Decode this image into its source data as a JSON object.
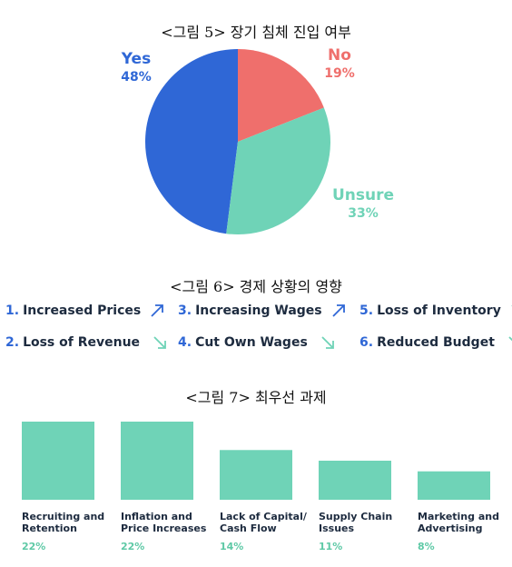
{
  "captions": {
    "fig5": "<그림 5> 장기 침체 진입 여부",
    "fig6": "<그림 6> 경제 상황의 영향",
    "fig7": "<그림 7> 최우선 과제"
  },
  "colors": {
    "yes": "#2f67d6",
    "no": "#ef6f6c",
    "unsure": "#6fd3b7",
    "bar": "#6fd3b7",
    "number": "#2f67d6",
    "arrow": "#2f67d6",
    "text": "#1d2b3f"
  },
  "chart_data": [
    {
      "type": "pie",
      "slices": [
        {
          "label": "Yes",
          "value": 48,
          "display": "48%",
          "color": "#2f67d6"
        },
        {
          "label": "No",
          "value": 19,
          "display": "19%",
          "color": "#ef6f6c"
        },
        {
          "label": "Unsure",
          "value": 33,
          "display": "33%",
          "color": "#6fd3b7"
        }
      ]
    },
    {
      "type": "bar",
      "categories": [
        [
          "Recruiting and",
          "Retention"
        ],
        [
          "Inflation and",
          "Price Increases"
        ],
        [
          "Lack of Capital/",
          "Cash Flow"
        ],
        [
          "Supply Chain",
          "Issues"
        ],
        [
          "Marketing and",
          "Advertising"
        ]
      ],
      "values": [
        22,
        22,
        14,
        11,
        8
      ],
      "value_labels": [
        "22%",
        "22%",
        "14%",
        "11%",
        "8%"
      ],
      "ylim": [
        0,
        22
      ]
    }
  ],
  "impacts": [
    {
      "num": "1.",
      "label": "Increased Prices",
      "direction": "up-right-arrow-icon"
    },
    {
      "num": "2.",
      "label": "Loss of Revenue",
      "direction": "down-right-arrow-icon"
    },
    {
      "num": "3.",
      "label": "Increasing Wages",
      "direction": "up-right-arrow-icon"
    },
    {
      "num": "4.",
      "label": "Cut Own Wages",
      "direction": "down-right-arrow-icon"
    },
    {
      "num": "5.",
      "label": "Loss of Inventory",
      "direction": "down-right-arrow-icon"
    },
    {
      "num": "6.",
      "label": "Reduced Budget",
      "direction": "down-right-arrow-icon"
    }
  ]
}
